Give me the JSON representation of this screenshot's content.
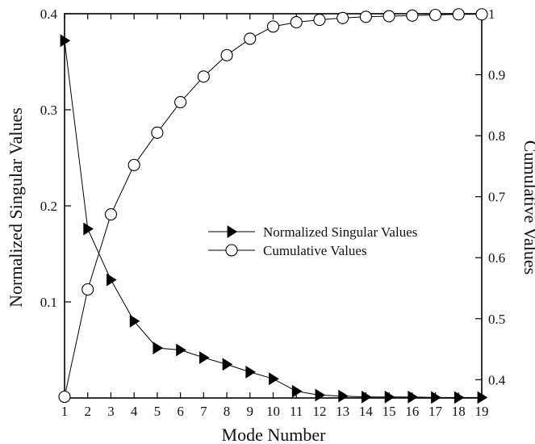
{
  "chart_data": {
    "type": "line",
    "xlabel": "Mode Number",
    "ylabel_left": "Normalized Singular Values",
    "ylabel_right": "Cumulative Values",
    "x": [
      1,
      2,
      3,
      4,
      5,
      6,
      7,
      8,
      9,
      10,
      11,
      12,
      13,
      14,
      15,
      16,
      17,
      18,
      19
    ],
    "xlim": [
      1,
      19
    ],
    "ylim_left": [
      0,
      0.4
    ],
    "ylim_right": [
      0.37,
      1.0
    ],
    "x_ticks": [
      "1",
      "2",
      "3",
      "4",
      "5",
      "6",
      "7",
      "8",
      "9",
      "10",
      "11",
      "12",
      "13",
      "14",
      "15",
      "16",
      "17",
      "18",
      "19"
    ],
    "y_left_ticks": [
      {
        "value": 0.1,
        "label": "0.1"
      },
      {
        "value": 0.2,
        "label": "0.2"
      },
      {
        "value": 0.3,
        "label": "0.3"
      },
      {
        "value": 0.4,
        "label": "0.4"
      }
    ],
    "y_right_ticks": [
      {
        "value": 0.4,
        "label": "0.4"
      },
      {
        "value": 0.5,
        "label": "0.5"
      },
      {
        "value": 0.6,
        "label": "0.6"
      },
      {
        "value": 0.7,
        "label": "0.7"
      },
      {
        "value": 0.8,
        "label": "0.8"
      },
      {
        "value": 0.9,
        "label": "0.9"
      },
      {
        "value": 1.0,
        "label": "1"
      }
    ],
    "grid": false,
    "legend_position": "center-right",
    "series": [
      {
        "name": "Normalized Singular Values",
        "axis": "left",
        "marker": "triangle-right-filled",
        "values": [
          0.372,
          0.176,
          0.123,
          0.08,
          0.052,
          0.05,
          0.042,
          0.035,
          0.027,
          0.02,
          0.007,
          0.003,
          0.002,
          0.001,
          0.001,
          0.001,
          0.0005,
          0.0005,
          0.0005
        ]
      },
      {
        "name": "Cumulative Values",
        "axis": "right",
        "marker": "circle-open",
        "values": [
          0.372,
          0.548,
          0.671,
          0.752,
          0.805,
          0.855,
          0.897,
          0.932,
          0.959,
          0.979,
          0.986,
          0.99,
          0.993,
          0.995,
          0.996,
          0.997,
          0.998,
          0.999,
          0.999
        ]
      }
    ]
  }
}
